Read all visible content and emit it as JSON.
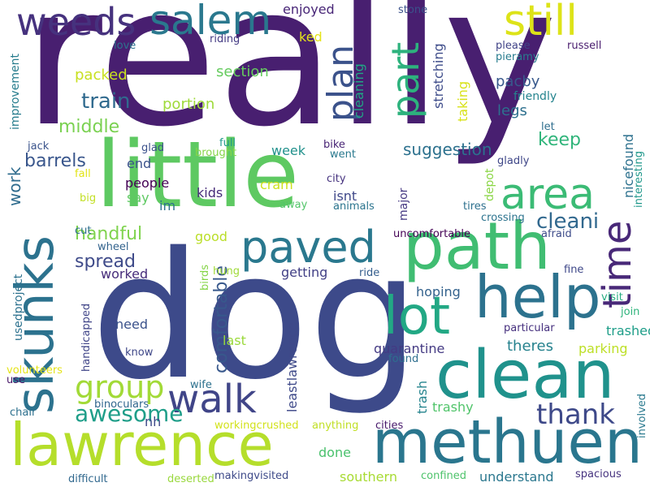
{
  "words": [
    {
      "text": "really",
      "color": "#481f70"
    },
    {
      "text": "dog",
      "color": "#3d4a8a"
    },
    {
      "text": "little",
      "color": "#5ec962"
    },
    {
      "text": "clean",
      "color": "#20928c"
    },
    {
      "text": "methuen",
      "color": "#2a768e"
    },
    {
      "text": "lawrence",
      "color": "#b5de2b"
    },
    {
      "text": "path",
      "color": "#40bd72"
    },
    {
      "text": "skunks",
      "color": "#2c728e"
    },
    {
      "text": "help",
      "color": "#2c728e"
    },
    {
      "text": "lot",
      "color": "#22a884"
    },
    {
      "text": "paved",
      "color": "#2a788e"
    },
    {
      "text": "walk",
      "color": "#404588"
    },
    {
      "text": "area",
      "color": "#3bbb75"
    },
    {
      "text": "time",
      "color": "#482878"
    },
    {
      "text": "salem",
      "color": "#2a788e"
    },
    {
      "text": "weeds",
      "color": "#46327e"
    },
    {
      "text": "still",
      "color": "#dde318"
    },
    {
      "text": "plan",
      "color": "#3b528b"
    },
    {
      "text": "part",
      "color": "#2db27d"
    },
    {
      "text": "thank",
      "color": "#3e4989"
    },
    {
      "text": "group",
      "color": "#a2da37"
    },
    {
      "text": "awesome",
      "color": "#1f9e89"
    },
    {
      "text": "cleani",
      "color": "#31688e"
    },
    {
      "text": "train",
      "color": "#306a8e"
    },
    {
      "text": "middle",
      "color": "#7ad151"
    },
    {
      "text": "handful",
      "color": "#7fd34e"
    },
    {
      "text": "spread",
      "color": "#3e4a89"
    },
    {
      "text": "barrels",
      "color": "#39568c"
    },
    {
      "text": "suggestion",
      "color": "#2c718e"
    },
    {
      "text": "keep",
      "color": "#31b57b"
    },
    {
      "text": "comfortable",
      "color": "#38588c"
    },
    {
      "text": "work",
      "color": "#2f6c8e"
    },
    {
      "text": "packed",
      "color": "#c8e020"
    },
    {
      "text": "section",
      "color": "#65cb5e"
    },
    {
      "text": "portion",
      "color": "#9fda3a"
    },
    {
      "text": "legs",
      "color": "#2d708e"
    },
    {
      "text": "pacby",
      "color": "#38598c"
    },
    {
      "text": "enjoyed",
      "color": "#482677"
    },
    {
      "text": "ked",
      "color": "#e5e419"
    },
    {
      "text": "stretching",
      "color": "#3e4c8a"
    },
    {
      "text": "taking",
      "color": "#d8e219"
    },
    {
      "text": "cleaning",
      "color": "#21a685"
    },
    {
      "text": "friendly",
      "color": "#25848e"
    },
    {
      "text": "nicefound",
      "color": "#2d718e"
    },
    {
      "text": "interesting",
      "color": "#1f988b"
    },
    {
      "text": "gladly",
      "color": "#3f4788"
    },
    {
      "text": "let",
      "color": "#2e6e8e"
    },
    {
      "text": "stone",
      "color": "#3b528b"
    },
    {
      "text": "please",
      "color": "#404387"
    },
    {
      "text": "russell",
      "color": "#481b6d"
    },
    {
      "text": "pieramy",
      "color": "#287c8e"
    },
    {
      "text": "riding",
      "color": "#443b84"
    },
    {
      "text": "love",
      "color": "#2c738e"
    },
    {
      "text": "improvement",
      "color": "#287d8e"
    },
    {
      "text": "week",
      "color": "#21918c"
    },
    {
      "text": "end",
      "color": "#3b528b"
    },
    {
      "text": "people",
      "color": "#440154"
    },
    {
      "text": "say",
      "color": "#5ec962"
    },
    {
      "text": "im",
      "color": "#2c718e"
    },
    {
      "text": "kids",
      "color": "#472c7a"
    },
    {
      "text": "cram",
      "color": "#cde11d"
    },
    {
      "text": "isnt",
      "color": "#3f4889"
    },
    {
      "text": "major",
      "color": "#453882"
    },
    {
      "text": "depot",
      "color": "#8bd646"
    },
    {
      "text": "tires",
      "color": "#2d708e"
    },
    {
      "text": "crossing",
      "color": "#2c738e"
    },
    {
      "text": "away",
      "color": "#52c569"
    },
    {
      "text": "animals",
      "color": "#2b748e"
    },
    {
      "text": "city",
      "color": "#46337f"
    },
    {
      "text": "went",
      "color": "#29798e"
    },
    {
      "text": "bike",
      "color": "#482475"
    },
    {
      "text": "full",
      "color": "#1f9a8a"
    },
    {
      "text": "brought",
      "color": "#86d549"
    },
    {
      "text": "glad",
      "color": "#3b518b"
    },
    {
      "text": "jack",
      "color": "#3a538b"
    },
    {
      "text": "fall",
      "color": "#e2e418"
    },
    {
      "text": "big",
      "color": "#c2df23"
    },
    {
      "text": "cut",
      "color": "#2e6f8e"
    },
    {
      "text": "wheel",
      "color": "#33638d"
    },
    {
      "text": "good",
      "color": "#bade28"
    },
    {
      "text": "worked",
      "color": "#472d7b"
    },
    {
      "text": "getting",
      "color": "#424086"
    },
    {
      "text": "uncomfortable",
      "color": "#440154"
    },
    {
      "text": "afraid",
      "color": "#3e4c8a"
    },
    {
      "text": "hoping",
      "color": "#33628d"
    },
    {
      "text": "ride",
      "color": "#355e8d"
    },
    {
      "text": "fine",
      "color": "#3f4889"
    },
    {
      "text": "visit",
      "color": "#27ad81"
    },
    {
      "text": "join",
      "color": "#2fb47c"
    },
    {
      "text": "trashed",
      "color": "#1f9e89"
    },
    {
      "text": "parking",
      "color": "#bddf26"
    },
    {
      "text": "particular",
      "color": "#46307e"
    },
    {
      "text": "theres",
      "color": "#26828e"
    },
    {
      "text": "quarantine",
      "color": "#443a83"
    },
    {
      "text": "found",
      "color": "#2e6e8e"
    },
    {
      "text": "trash",
      "color": "#25848e"
    },
    {
      "text": "leastlawrence",
      "color": "#3e4989"
    },
    {
      "text": "last",
      "color": "#9bd93c"
    },
    {
      "text": "need",
      "color": "#3b528b"
    },
    {
      "text": "know",
      "color": "#3f4788"
    },
    {
      "text": "hung",
      "color": "#a0da39"
    },
    {
      "text": "birds",
      "color": "#86d549"
    },
    {
      "text": "usedproject",
      "color": "#2c718e"
    },
    {
      "text": "handicapped",
      "color": "#404588"
    },
    {
      "text": "volunteers",
      "color": "#e5e419"
    },
    {
      "text": "use",
      "color": "#481769"
    },
    {
      "text": "chair",
      "color": "#2d708e"
    },
    {
      "text": "binoculars",
      "color": "#31668e"
    },
    {
      "text": "wife",
      "color": "#2d718e"
    },
    {
      "text": "nh",
      "color": "#3e4989"
    },
    {
      "text": "workingcrushed",
      "color": "#d2e21b"
    },
    {
      "text": "anything",
      "color": "#c0df25"
    },
    {
      "text": "cities",
      "color": "#481a6c"
    },
    {
      "text": "trashy",
      "color": "#50c46a"
    },
    {
      "text": "involved",
      "color": "#29798e"
    },
    {
      "text": "done",
      "color": "#4ac16d"
    },
    {
      "text": "southern",
      "color": "#a8db34"
    },
    {
      "text": "understand",
      "color": "#2a778e"
    },
    {
      "text": "spacious",
      "color": "#46337f"
    },
    {
      "text": "confined",
      "color": "#4ec36b"
    },
    {
      "text": "makingvisited",
      "color": "#3e4a89"
    },
    {
      "text": "deserted",
      "color": "#99d83d"
    },
    {
      "text": "difficult",
      "color": "#31688e"
    }
  ]
}
